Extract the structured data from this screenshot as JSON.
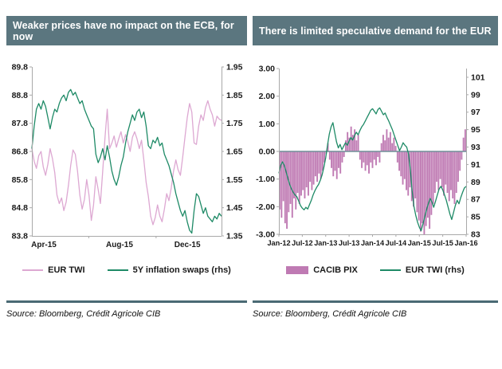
{
  "colors": {
    "header_bg": "#5b767f",
    "header_text": "#ffffff",
    "rule": "#4a6a74",
    "axis": "#a9a9a9",
    "zero_line": "#708f99",
    "pink_line": "#dda8d2",
    "pink_bar": "#bf7ab3",
    "green_line": "#1e8a66"
  },
  "panels": [
    {
      "source": "Source: Bloomberg, Crédit Agricole CIB"
    },
    {
      "source": "Source: Bloomberg, Crédit Agricole CIB"
    }
  ],
  "chart_data": [
    {
      "type": "line",
      "title": "Weaker prices have no impact on the ECB, for now",
      "legend_position": "bottom",
      "grid": false,
      "x_axis": {
        "labels": [
          "Apr-15",
          "Aug-15",
          "Dec-15"
        ],
        "label_pos": [
          0.063,
          0.462,
          0.82
        ],
        "tick_pos": [
          0.3,
          0.655
        ],
        "dense": false
      },
      "y_left": {
        "min": 83.8,
        "max": 89.8,
        "ticks": [
          "89.8",
          "88.8",
          "87.8",
          "86.8",
          "85.8",
          "84.8",
          "83.8"
        ]
      },
      "y_right": {
        "min": 1.35,
        "max": 1.95,
        "ticks": [
          "1.95",
          "1.85",
          "1.75",
          "1.65",
          "1.55",
          "1.45",
          "1.35"
        ]
      },
      "series": [
        {
          "name": "EUR TWI",
          "type": "line",
          "axis": "left",
          "color": "#dda8d2",
          "values": [
            86.9,
            86.45,
            86.2,
            86.65,
            86.8,
            86.25,
            85.95,
            86.35,
            86.9,
            86.55,
            86.05,
            85.25,
            84.95,
            85.15,
            84.7,
            85.0,
            85.6,
            86.3,
            86.85,
            86.7,
            86.1,
            85.25,
            84.75,
            85.1,
            85.8,
            85.25,
            84.35,
            84.9,
            85.9,
            85.45,
            84.95,
            86.1,
            87.3,
            88.3,
            86.9,
            87.1,
            87.35,
            86.95,
            87.25,
            87.5,
            87.1,
            87.4,
            87.15,
            86.8,
            87.3,
            87.5,
            87.25,
            86.9,
            87.2,
            86.5,
            85.7,
            85.2,
            84.5,
            84.2,
            84.45,
            84.9,
            84.5,
            84.3,
            84.75,
            85.3,
            85.05,
            85.5,
            86.1,
            86.5,
            86.15,
            85.95,
            86.6,
            87.3,
            88.0,
            88.5,
            88.2,
            87.1,
            87.05,
            87.7,
            88.1,
            87.9,
            88.35,
            88.6,
            88.3,
            88.1,
            87.7,
            88.05,
            87.95,
            87.9
          ]
        },
        {
          "name": "5Y inflation swaps (rhs)",
          "type": "line",
          "axis": "right",
          "color": "#1e8a66",
          "values": [
            1.66,
            1.74,
            1.8,
            1.82,
            1.8,
            1.83,
            1.81,
            1.77,
            1.73,
            1.77,
            1.8,
            1.79,
            1.82,
            1.84,
            1.85,
            1.83,
            1.86,
            1.87,
            1.85,
            1.86,
            1.84,
            1.82,
            1.83,
            1.8,
            1.78,
            1.76,
            1.74,
            1.73,
            1.64,
            1.61,
            1.63,
            1.66,
            1.62,
            1.67,
            1.63,
            1.58,
            1.55,
            1.53,
            1.56,
            1.6,
            1.63,
            1.68,
            1.72,
            1.75,
            1.78,
            1.76,
            1.79,
            1.8,
            1.77,
            1.79,
            1.74,
            1.67,
            1.66,
            1.69,
            1.68,
            1.7,
            1.67,
            1.68,
            1.64,
            1.62,
            1.6,
            1.57,
            1.54,
            1.5,
            1.47,
            1.44,
            1.42,
            1.44,
            1.4,
            1.37,
            1.36,
            1.44,
            1.5,
            1.49,
            1.46,
            1.43,
            1.45,
            1.42,
            1.41,
            1.4,
            1.42,
            1.41,
            1.43,
            1.42
          ]
        }
      ]
    },
    {
      "type": "bar+line",
      "title": "There is limited speculative demand for the EUR",
      "legend_position": "bottom",
      "grid": false,
      "zero_line": true,
      "x_axis": {
        "labels": [
          "Jan-12",
          "Jul-12",
          "Jan-13",
          "Jul-13",
          "Jan-14",
          "Jul-14",
          "Jan-15",
          "Jul-15",
          "Jan-16"
        ],
        "dense": true
      },
      "y_left": {
        "min": -3,
        "max": 3,
        "ticks": [
          "3.00",
          "2.00",
          "1.00",
          "0.00",
          "-1.00",
          "-2.00",
          "-3.00"
        ]
      },
      "y_right": {
        "min": 83,
        "max": 102,
        "ticks": [
          "101",
          "99",
          "97",
          "95",
          "93",
          "91",
          "89",
          "87",
          "85",
          "83"
        ]
      },
      "series": [
        {
          "name": "CACIB PIX",
          "type": "bar",
          "axis": "left",
          "color": "#bf7ab3",
          "values": [
            -2.1,
            -2.4,
            -1.8,
            -2.6,
            -2.8,
            -2.2,
            -1.9,
            -2.4,
            -1.7,
            -2.1,
            -1.5,
            -1.9,
            -1.6,
            -1.4,
            -1.7,
            -1.3,
            -1.6,
            -1.1,
            -1.4,
            -1.2,
            -0.9,
            -1.1,
            -0.8,
            -1.0,
            -0.7,
            -0.4,
            -0.1,
            0.3,
            -0.3,
            -0.6,
            -0.9,
            -0.7,
            -1.0,
            -0.6,
            -0.8,
            -0.4,
            -0.2,
            0.4,
            0.7,
            0.5,
            0.9,
            0.6,
            0.8,
            0.4,
            0.6,
            -0.3,
            -0.6,
            -0.4,
            -0.7,
            -0.5,
            -0.8,
            -0.4,
            -0.6,
            -0.3,
            -0.5,
            -0.2,
            -0.4,
            0.3,
            0.6,
            0.4,
            0.8,
            0.5,
            0.7,
            0.3,
            0.5,
            0.2,
            -0.4,
            -0.7,
            -0.9,
            -1.2,
            -1.0,
            -1.4,
            -1.6,
            -1.3,
            -1.8,
            -2.0,
            -1.7,
            -2.2,
            -2.5,
            -2.9,
            -2.6,
            -3.0,
            -2.7,
            -2.4,
            -2.8,
            -2.3,
            -1.9,
            -1.5,
            -1.1,
            -1.4,
            -1.0,
            -1.3,
            -1.6,
            -1.2,
            -1.5,
            -1.8,
            -1.4,
            -1.7,
            -1.9,
            -1.5,
            -1.1,
            -0.7,
            -0.3,
            0.5,
            0.8
          ]
        },
        {
          "name": "EUR TWI (rhs)",
          "type": "line",
          "axis": "right",
          "color": "#1e8a66",
          "values": [
            90.0,
            90.9,
            91.3,
            90.9,
            90.2,
            89.4,
            88.7,
            88.2,
            87.8,
            87.5,
            87.3,
            86.8,
            86.3,
            86.0,
            85.8,
            86.1,
            85.9,
            86.4,
            86.9,
            87.5,
            88.0,
            88.4,
            88.7,
            89.2,
            89.8,
            90.7,
            91.8,
            93.2,
            94.5,
            95.3,
            95.8,
            94.7,
            93.6,
            92.9,
            93.3,
            92.7,
            93.1,
            93.5,
            93.2,
            93.7,
            94.1,
            93.8,
            94.3,
            94.7,
            94.4,
            94.9,
            95.3,
            95.6,
            96.0,
            96.4,
            96.8,
            97.2,
            97.4,
            97.1,
            96.8,
            97.3,
            97.5,
            97.1,
            96.7,
            96.9,
            96.4,
            96.0,
            95.5,
            95.0,
            94.4,
            93.8,
            93.2,
            92.6,
            93.0,
            93.5,
            93.2,
            93.0,
            92.2,
            90.4,
            88.0,
            86.2,
            85.2,
            84.4,
            83.8,
            83.4,
            84.2,
            85.0,
            85.8,
            86.5,
            87.1,
            86.7,
            86.1,
            86.8,
            87.5,
            88.2,
            88.5,
            88.1,
            87.5,
            86.9,
            86.1,
            85.3,
            84.7,
            85.5,
            86.3,
            86.9,
            86.5,
            87.2,
            87.8,
            88.3,
            88.5
          ]
        }
      ]
    }
  ]
}
